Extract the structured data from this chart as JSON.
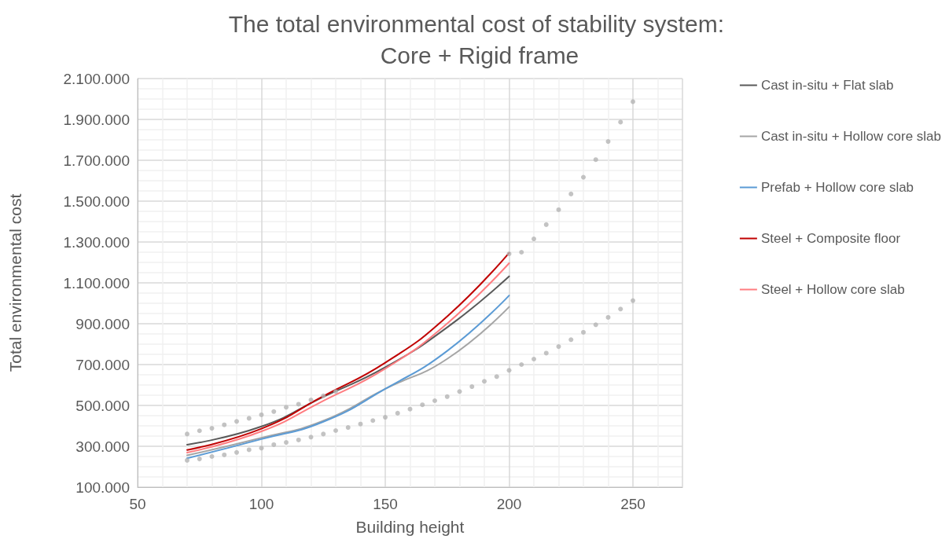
{
  "chart_data": {
    "type": "line",
    "title": "The total environmental cost of stability system: Core + Rigid frame",
    "xlabel": "Building height",
    "ylabel": "Total environmental cost",
    "xlim": [
      50,
      270
    ],
    "xticks": [
      50,
      100,
      150,
      200,
      250
    ],
    "ylim": [
      100000,
      2100000
    ],
    "yticks": [
      {
        "value": 100000,
        "label": "100.000"
      },
      {
        "value": 300000,
        "label": "300.000"
      },
      {
        "value": 500000,
        "label": "500.000"
      },
      {
        "value": 700000,
        "label": "700.000"
      },
      {
        "value": 900000,
        "label": "900.000"
      },
      {
        "value": 1100000,
        "label": "1.100.000"
      },
      {
        "value": 1300000,
        "label": "1.300.000"
      },
      {
        "value": 1500000,
        "label": "1.500.000"
      },
      {
        "value": 1700000,
        "label": "1.700.000"
      },
      {
        "value": 1900000,
        "label": "1.900.000"
      },
      {
        "value": 2100000,
        "label": "2.100.000"
      }
    ],
    "grid": true,
    "legend": "right",
    "marker": "none",
    "line_style": "solid",
    "series": [
      {
        "name": "Cast in-situ + Flat slab",
        "color": "#595959",
        "x": [
          70,
          100,
          125,
          150,
          175,
          200
        ],
        "values": [
          308000,
          397000,
          542000,
          687000,
          882000,
          1132000
        ]
      },
      {
        "name": "Cast in-situ + Hollow core slab",
        "color": "#a5a5a5",
        "x": [
          70,
          100,
          125,
          150,
          175,
          200
        ],
        "values": [
          256000,
          341000,
          425000,
          581000,
          728000,
          982000
        ]
      },
      {
        "name": "Prefab + Hollow core slab",
        "color": "#5b9bd5",
        "x": [
          70,
          100,
          125,
          150,
          175,
          200
        ],
        "values": [
          241000,
          335000,
          420000,
          581000,
          767000,
          1038000
        ]
      },
      {
        "name": "Steel + Composite floor",
        "color": "#c00000",
        "x": [
          70,
          100,
          125,
          150,
          175,
          200
        ],
        "values": [
          282000,
          386000,
          546000,
          709000,
          936000,
          1247000
        ]
      },
      {
        "name": "Steel + Hollow core slab",
        "color": "#ff7c80",
        "x": [
          70,
          100,
          125,
          150,
          175,
          200
        ],
        "values": [
          269000,
          373000,
          523000,
          680000,
          901000,
          1196000
        ]
      },
      {
        "type": "scatter",
        "marker": "circle",
        "color": "#b4b4b4",
        "x": [
          70,
          75,
          80,
          85,
          90,
          95,
          100,
          105,
          110,
          115,
          120,
          125,
          130,
          135,
          140,
          145,
          150,
          155,
          160,
          165,
          170,
          175,
          180,
          185,
          190,
          195,
          200,
          205,
          210,
          215,
          220,
          225,
          230,
          235,
          240,
          245,
          250
        ],
        "values": [
          360000,
          376000,
          388000,
          405000,
          422000,
          437000,
          454000,
          470000,
          491000,
          506000,
          527000,
          547000,
          568000,
          null,
          null,
          null,
          null,
          null,
          null,
          null,
          null,
          null,
          null,
          null,
          null,
          null,
          1242000,
          1250000,
          1315000,
          1385000,
          1458000,
          1535000,
          1617000,
          1703000,
          1792000,
          1887000,
          1987000
        ]
      },
      {
        "type": "scatter",
        "marker": "circle",
        "color": "#b4b4b4",
        "x": [
          70,
          75,
          80,
          85,
          90,
          95,
          100,
          105,
          110,
          115,
          120,
          125,
          130,
          135,
          140,
          145,
          150,
          155,
          160,
          165,
          170,
          175,
          180,
          185,
          190,
          195,
          200,
          205,
          210,
          215,
          220,
          225,
          230,
          235,
          240,
          245,
          250
        ],
        "values": [
          231000,
          238000,
          250000,
          258000,
          270000,
          283000,
          291000,
          308000,
          319000,
          331000,
          345000,
          360000,
          377000,
          392000,
          409000,
          426000,
          442000,
          462000,
          482000,
          503000,
          523000,
          543000,
          568000,
          592000,
          618000,
          641000,
          672000,
          700000,
          727000,
          756000,
          788000,
          822000,
          858000,
          895000,
          931000,
          972000,
          1013000
        ]
      }
    ]
  }
}
